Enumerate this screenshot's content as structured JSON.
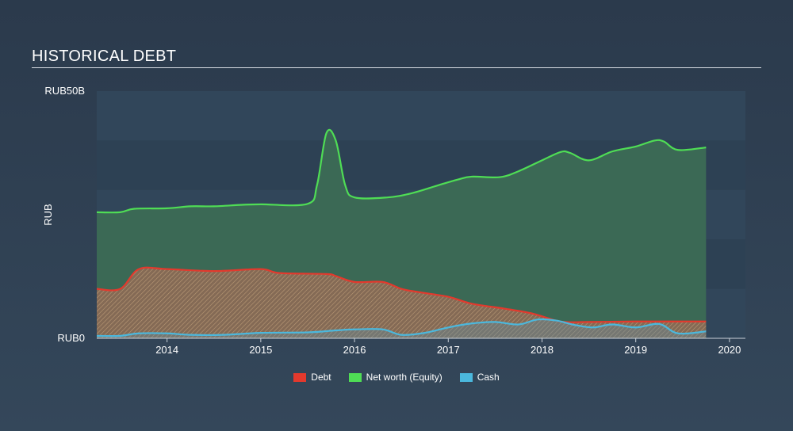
{
  "title": "HISTORICAL DEBT",
  "chart_data": {
    "type": "area",
    "title": "HISTORICAL DEBT",
    "ylabel": "RUB",
    "xlabel": "",
    "y_tick_labels": [
      "RUB0",
      "RUB50B"
    ],
    "ylim": [
      0,
      50
    ],
    "xlim": [
      2013.25,
      2020.17
    ],
    "x_ticks": [
      2014,
      2015,
      2016,
      2017,
      2018,
      2019,
      2020
    ],
    "grid": "horizontal bands",
    "legend_position": "bottom-center",
    "series": [
      {
        "name": "Debt",
        "color": "#e3392d",
        "points": [
          [
            2013.25,
            10
          ],
          [
            2013.5,
            10
          ],
          [
            2013.7,
            14
          ],
          [
            2014.0,
            14
          ],
          [
            2014.5,
            13.6
          ],
          [
            2015.0,
            14
          ],
          [
            2015.2,
            13.2
          ],
          [
            2015.7,
            13
          ],
          [
            2015.8,
            12.6
          ],
          [
            2016.0,
            11.4
          ],
          [
            2016.3,
            11.4
          ],
          [
            2016.5,
            10
          ],
          [
            2016.7,
            9.3
          ],
          [
            2017.0,
            8.4
          ],
          [
            2017.25,
            7
          ],
          [
            2017.6,
            6
          ],
          [
            2017.9,
            5
          ],
          [
            2018.2,
            3.4
          ],
          [
            2018.5,
            3.3
          ],
          [
            2019.0,
            3.4
          ],
          [
            2019.5,
            3.4
          ],
          [
            2019.75,
            3.4
          ]
        ]
      },
      {
        "name": "Net worth (Equity)",
        "color": "#4fdd55",
        "points": [
          [
            2013.25,
            25.5
          ],
          [
            2013.5,
            25.5
          ],
          [
            2013.65,
            26.2
          ],
          [
            2014.0,
            26.3
          ],
          [
            2014.25,
            26.7
          ],
          [
            2014.5,
            26.7
          ],
          [
            2014.8,
            27
          ],
          [
            2015.0,
            27.1
          ],
          [
            2015.5,
            27.2
          ],
          [
            2015.6,
            31
          ],
          [
            2015.7,
            41.5
          ],
          [
            2015.8,
            40
          ],
          [
            2015.9,
            31
          ],
          [
            2016.0,
            28.5
          ],
          [
            2016.35,
            28.5
          ],
          [
            2016.6,
            29.3
          ],
          [
            2016.9,
            31
          ],
          [
            2017.1,
            32.1
          ],
          [
            2017.25,
            32.7
          ],
          [
            2017.55,
            32.6
          ],
          [
            2017.75,
            33.8
          ],
          [
            2018.0,
            36
          ],
          [
            2018.2,
            37.7
          ],
          [
            2018.3,
            37.5
          ],
          [
            2018.5,
            36
          ],
          [
            2018.75,
            37.8
          ],
          [
            2019.0,
            38.8
          ],
          [
            2019.2,
            40
          ],
          [
            2019.3,
            39.8
          ],
          [
            2019.45,
            38.1
          ],
          [
            2019.75,
            38.6
          ]
        ]
      },
      {
        "name": "Cash",
        "color": "#4bb8dd",
        "points": [
          [
            2013.25,
            0.5
          ],
          [
            2013.5,
            0.5
          ],
          [
            2013.7,
            1
          ],
          [
            2014.0,
            1
          ],
          [
            2014.25,
            0.7
          ],
          [
            2014.6,
            0.7
          ],
          [
            2015.0,
            1.1
          ],
          [
            2015.5,
            1.2
          ],
          [
            2015.8,
            1.6
          ],
          [
            2016.0,
            1.8
          ],
          [
            2016.3,
            1.8
          ],
          [
            2016.5,
            0.7
          ],
          [
            2016.75,
            1.1
          ],
          [
            2017.0,
            2.2
          ],
          [
            2017.25,
            3
          ],
          [
            2017.5,
            3.3
          ],
          [
            2017.75,
            2.8
          ],
          [
            2017.95,
            3.8
          ],
          [
            2018.15,
            3.6
          ],
          [
            2018.35,
            2.7
          ],
          [
            2018.55,
            2.2
          ],
          [
            2018.75,
            2.8
          ],
          [
            2019.0,
            2.2
          ],
          [
            2019.25,
            2.9
          ],
          [
            2019.45,
            1
          ],
          [
            2019.75,
            1.4
          ]
        ]
      }
    ]
  },
  "legend": [
    {
      "label": "Debt",
      "color": "#e3392d"
    },
    {
      "label": "Net worth (Equity)",
      "color": "#4fdd55"
    },
    {
      "label": "Cash",
      "color": "#4bb8dd"
    }
  ]
}
